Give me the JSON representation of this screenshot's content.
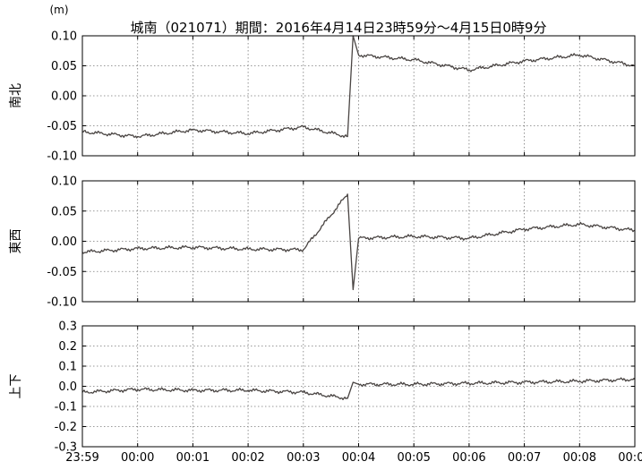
{
  "title": "城南（021071）期間：2016年4月14日23時59分～4月15日0時9分",
  "unit": "(m)",
  "colors": {
    "line": "#4a4543",
    "frame": "#000000",
    "grid": "#7a7a7a"
  },
  "x_ticks": [
    "23:59",
    "00:00",
    "00:01",
    "00:02",
    "00:03",
    "00:04",
    "00:05",
    "00:06",
    "00:07",
    "00:08",
    "00:09"
  ],
  "chart_data": [
    {
      "type": "line",
      "panel": "ns",
      "ylabel": "南北",
      "ylim": [
        -0.1,
        0.1
      ],
      "yticks": [
        "0.10",
        "0.05",
        "0.00",
        "-0.05",
        "-0.10"
      ],
      "x": [
        "23:59",
        "00:00",
        "00:01",
        "00:02",
        "00:03",
        "00:03.8",
        "00:03.9",
        "00:04",
        "00:05",
        "00:06",
        "00:07",
        "00:08",
        "00:09"
      ],
      "series": [
        {
          "values": [
            -0.06,
            -0.068,
            -0.057,
            -0.063,
            -0.052,
            -0.068,
            0.1,
            0.068,
            0.06,
            0.043,
            0.058,
            0.068,
            0.05
          ]
        }
      ]
    },
    {
      "type": "line",
      "panel": "ew",
      "ylabel": "東西",
      "ylim": [
        -0.1,
        0.1
      ],
      "yticks": [
        "0.10",
        "0.05",
        "0.00",
        "-0.05",
        "-0.10"
      ],
      "x": [
        "23:59",
        "00:00",
        "00:01",
        "00:02",
        "00:03",
        "00:03.8",
        "00:03.9",
        "00:04",
        "00:05",
        "00:06",
        "00:07",
        "00:08",
        "00:09"
      ],
      "series": [
        {
          "values": [
            -0.018,
            -0.012,
            -0.01,
            -0.013,
            -0.014,
            0.078,
            -0.08,
            0.005,
            0.008,
            0.005,
            0.02,
            0.028,
            0.018
          ]
        }
      ]
    },
    {
      "type": "line",
      "panel": "ud",
      "ylabel": "上下",
      "ylim": [
        -0.3,
        0.3
      ],
      "yticks": [
        "0.3",
        "0.2",
        "0.1",
        "0.0",
        "-0.1",
        "-0.2",
        "-0.3"
      ],
      "x": [
        "23:59",
        "00:00",
        "00:01",
        "00:02",
        "00:03",
        "00:03.8",
        "00:03.9",
        "00:04",
        "00:05",
        "00:06",
        "00:07",
        "00:08",
        "00:09"
      ],
      "series": [
        {
          "values": [
            -0.03,
            -0.015,
            -0.02,
            -0.02,
            -0.03,
            -0.06,
            0.02,
            0.01,
            0.01,
            0.015,
            0.02,
            0.025,
            0.035
          ]
        }
      ]
    }
  ]
}
